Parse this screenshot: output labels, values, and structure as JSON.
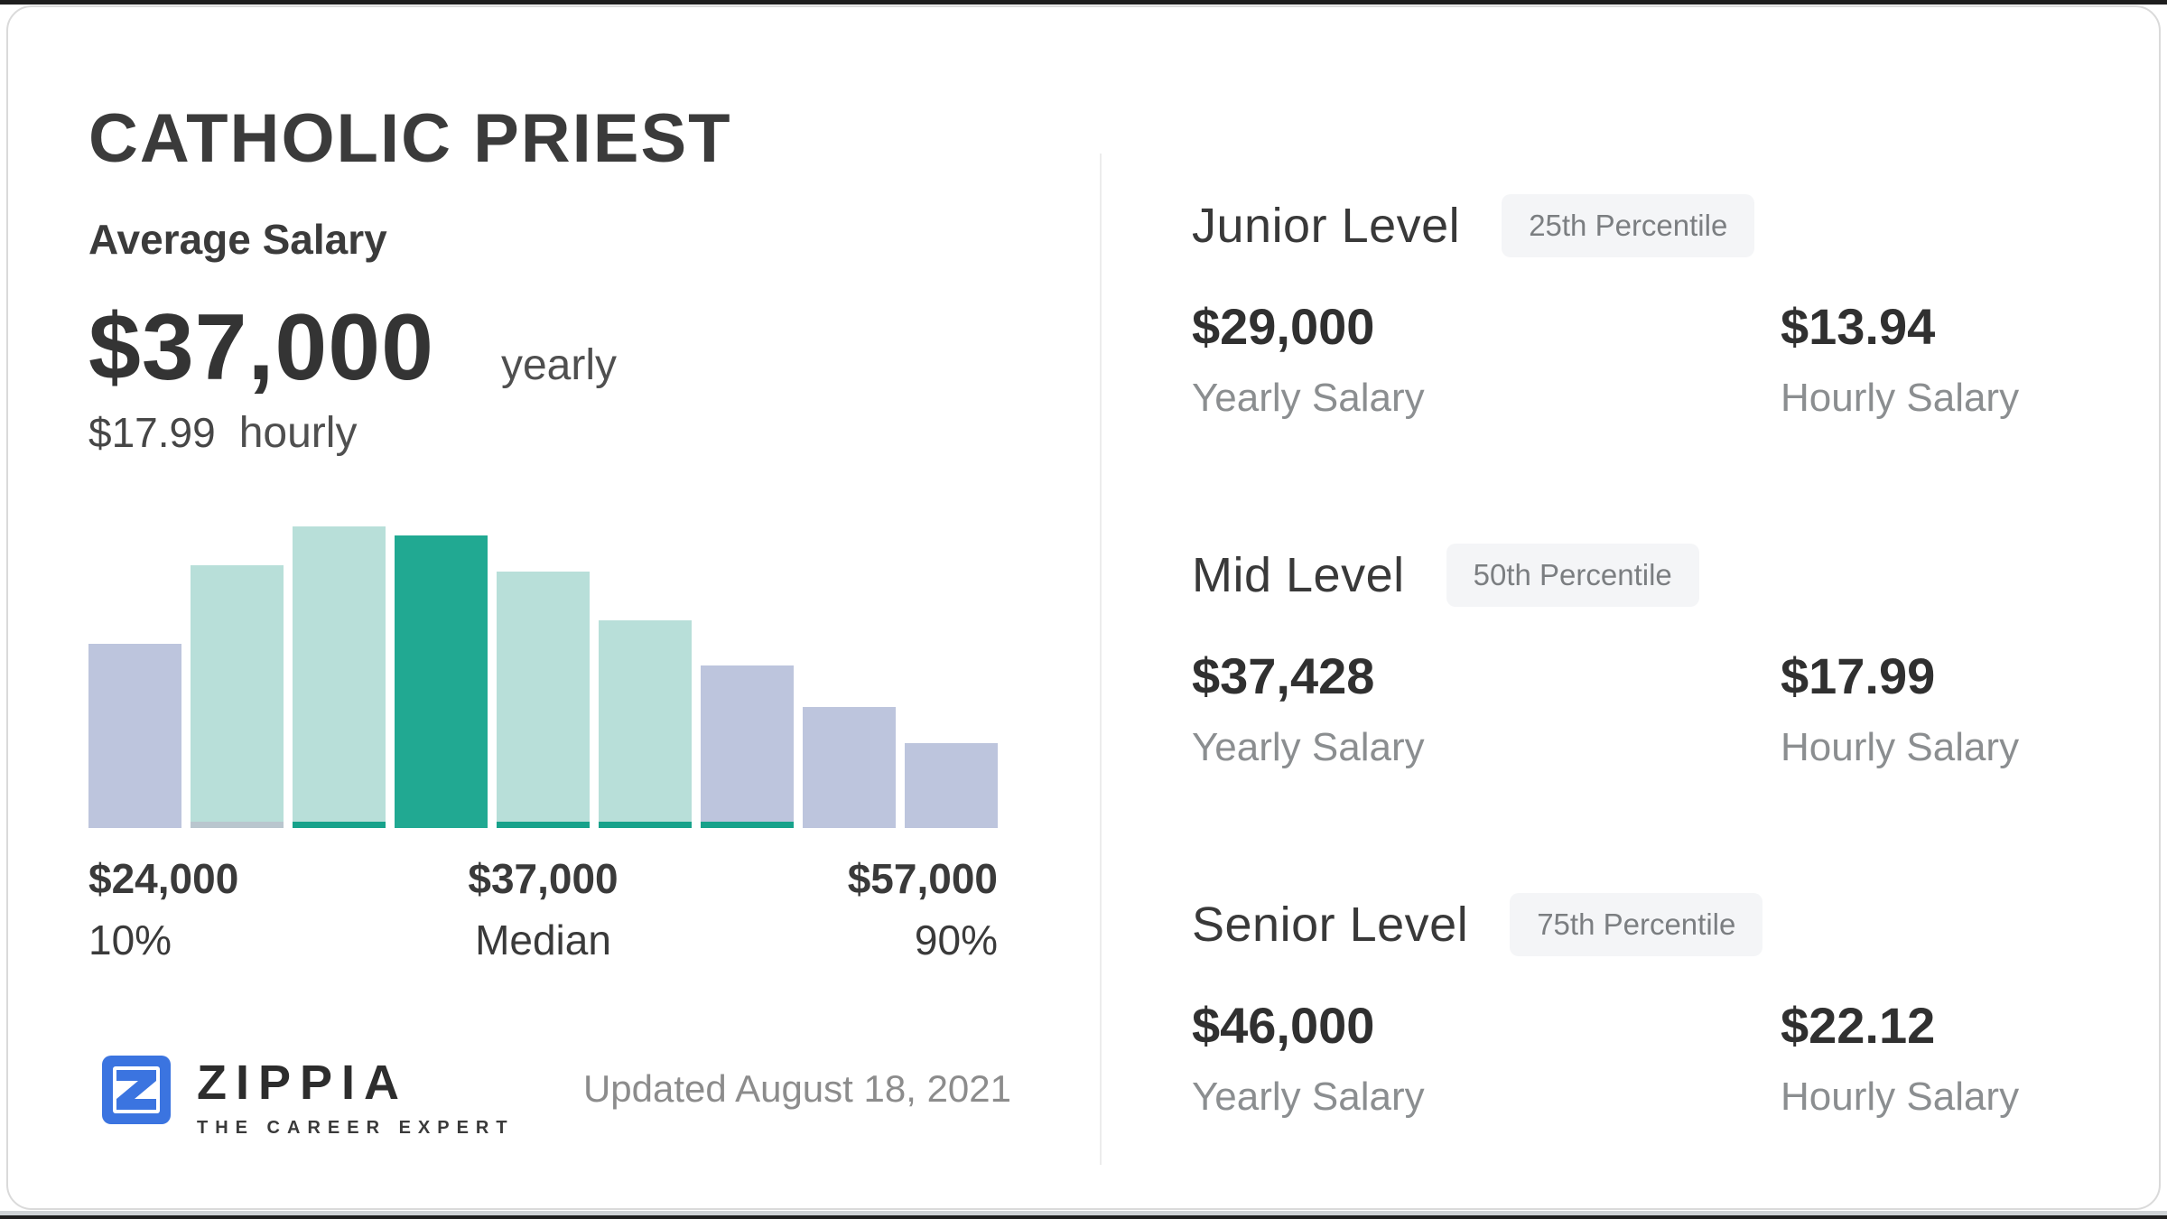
{
  "header": {
    "title": "CATHOLIC PRIEST"
  },
  "summary": {
    "label": "Average Salary",
    "yearly_value": "$37,000",
    "yearly_unit": "yearly",
    "hourly_value": "$17.99",
    "hourly_unit": "hourly"
  },
  "chart_data": {
    "type": "bar",
    "description": "salary distribution histogram, relative bar heights in percent of tallest bar",
    "values": [
      61,
      87,
      100,
      97,
      85,
      69,
      54,
      40,
      28
    ],
    "bar_colors": [
      "#bdc5dd",
      "#b8dfd9",
      "#b8dfd9",
      "#21a992",
      "#b8dfd9",
      "#b8dfd9",
      "#bdc5dd",
      "#bdc5dd",
      "#bdc5dd"
    ],
    "bar_strips": [
      null,
      "#b9c6ce",
      "#17a28b",
      null,
      "#17a28b",
      "#17a28b",
      "#17a28b",
      null,
      null
    ],
    "highlight_index": 3,
    "annotations": [
      {
        "value": "$24,000",
        "label": "10%",
        "position": "left"
      },
      {
        "value": "$37,000",
        "label": "Median",
        "position": "center"
      },
      {
        "value": "$57,000",
        "label": "90%",
        "position": "right"
      }
    ],
    "legend": "off",
    "grid": "off"
  },
  "levels": [
    {
      "name": "Junior Level",
      "badge": "25th Percentile",
      "yearly": "$29,000",
      "yearly_label": "Yearly Salary",
      "hourly": "$13.94",
      "hourly_label": "Hourly Salary"
    },
    {
      "name": "Mid Level",
      "badge": "50th Percentile",
      "yearly": "$37,428",
      "yearly_label": "Yearly Salary",
      "hourly": "$17.99",
      "hourly_label": "Hourly Salary"
    },
    {
      "name": "Senior Level",
      "badge": "75th Percentile",
      "yearly": "$46,000",
      "yearly_label": "Yearly Salary",
      "hourly": "$22.12",
      "hourly_label": "Hourly Salary"
    }
  ],
  "footer": {
    "brand": "ZIPPIA",
    "tagline": "THE CAREER EXPERT",
    "updated": "Updated August 18, 2021"
  },
  "colors": {
    "accent_teal": "#21a992",
    "light_teal": "#b8dfd9",
    "lavender": "#bdc5dd",
    "badge_bg": "#f4f5f7",
    "logo_blue": "#3b74e0",
    "text_dark": "#3b3b3b",
    "text_gray": "#8b8e90"
  }
}
